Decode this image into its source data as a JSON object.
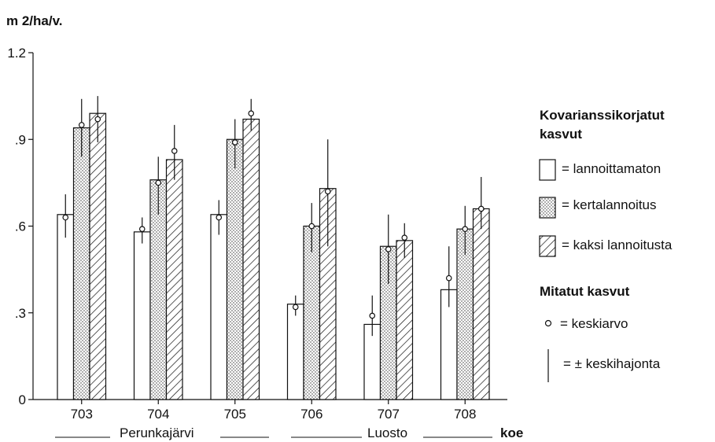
{
  "chart_data": {
    "type": "bar",
    "ylabel": "m 2/ha/v.",
    "ylim": [
      0,
      1.2
    ],
    "yticks": [
      0,
      0.3,
      0.6,
      0.9,
      1.2
    ],
    "ytick_labels": [
      "0",
      ".3",
      ".6",
      ".9",
      "1.2"
    ],
    "categories": [
      "703",
      "704",
      "705",
      "706",
      "707",
      "708"
    ],
    "xlabel": "koe",
    "groups": [
      {
        "label": "Perunkajärvi",
        "categories": [
          "703",
          "704",
          "705"
        ]
      },
      {
        "label": "Luosto",
        "categories": [
          "706",
          "707",
          "708"
        ]
      }
    ],
    "series": [
      {
        "name": "lannoittamaton",
        "pattern": "blank",
        "values": [
          0.64,
          0.58,
          0.64,
          0.33,
          0.26,
          0.38
        ],
        "means": [
          0.63,
          0.59,
          0.63,
          0.32,
          0.29,
          0.42
        ],
        "err_low": [
          0.56,
          0.54,
          0.57,
          0.29,
          0.22,
          0.32
        ],
        "err_high": [
          0.71,
          0.63,
          0.69,
          0.36,
          0.36,
          0.53
        ]
      },
      {
        "name": "kertalannoitus",
        "pattern": "dotted",
        "values": [
          0.94,
          0.76,
          0.9,
          0.6,
          0.53,
          0.59
        ],
        "means": [
          0.95,
          0.75,
          0.89,
          0.6,
          0.52,
          0.59
        ],
        "err_low": [
          0.84,
          0.64,
          0.8,
          0.51,
          0.4,
          0.5
        ],
        "err_high": [
          1.04,
          0.84,
          0.97,
          0.68,
          0.64,
          0.67
        ]
      },
      {
        "name": "kaksi lannoitusta",
        "pattern": "hatched",
        "values": [
          0.99,
          0.83,
          0.97,
          0.73,
          0.55,
          0.66
        ],
        "means": [
          0.97,
          0.86,
          0.99,
          0.72,
          0.56,
          0.66
        ],
        "err_low": [
          0.89,
          0.76,
          0.93,
          0.53,
          0.49,
          0.59
        ],
        "err_high": [
          1.05,
          0.95,
          1.04,
          0.9,
          0.61,
          0.77
        ]
      }
    ],
    "legend": {
      "heading1": "Kovarianssikorjatut",
      "heading1b": "kasvut",
      "items": [
        "= lannoittamaton",
        "= kertalannoitus",
        "= kaksi lannoitusta"
      ],
      "heading2": "Mitatut kasvut",
      "mean_label": "= keskiarvo",
      "sd_label": "= ± keskihajonta"
    },
    "grid": false
  }
}
